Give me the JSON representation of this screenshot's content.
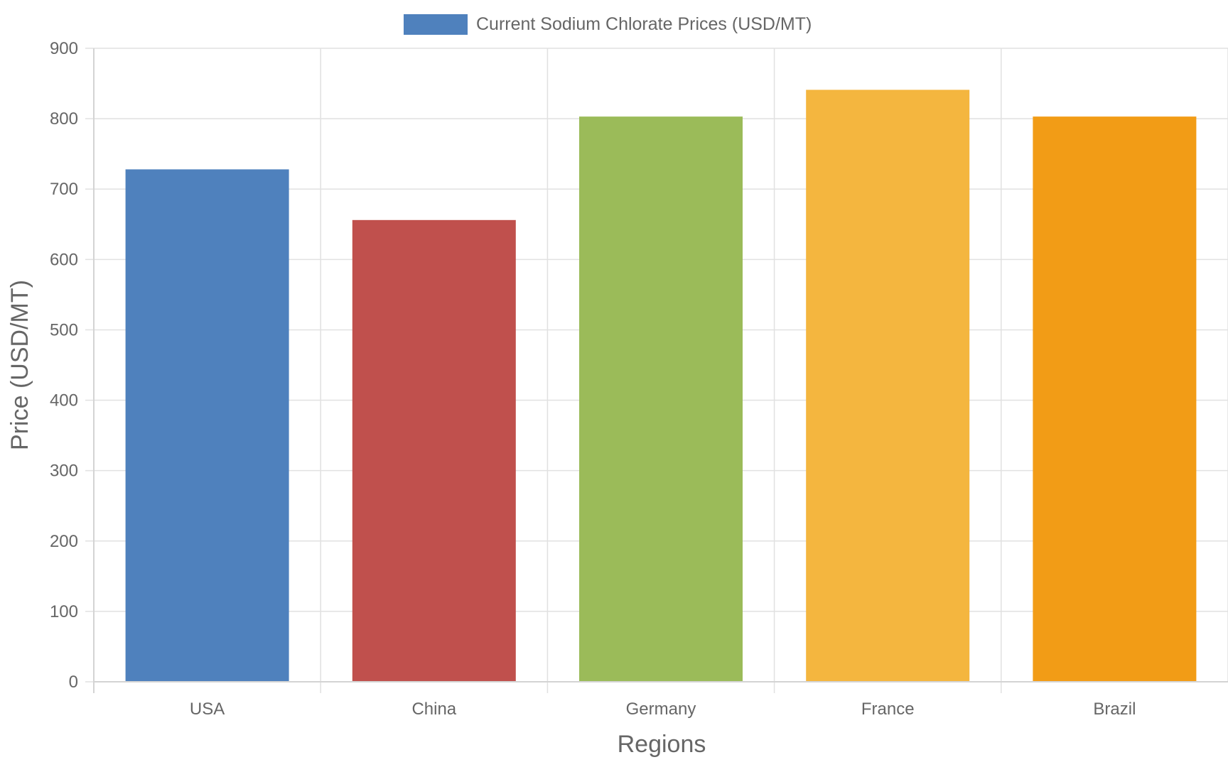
{
  "chart_data": {
    "type": "bar",
    "title": "",
    "categories": [
      "USA",
      "China",
      "Germany",
      "France",
      "Brazil"
    ],
    "series": [
      {
        "name": "Current Sodium Chlorate Prices (USD/MT)",
        "values": [
          727,
          655,
          802,
          840,
          802
        ],
        "colors": [
          "#4f81bd",
          "#c0504d",
          "#9bbb59",
          "#f4b63f",
          "#f29c16"
        ]
      }
    ],
    "xlabel": "Regions",
    "ylabel": "Price (USD/MT)",
    "ylim": [
      0,
      900
    ],
    "yticks": [
      "0",
      "100",
      "200",
      "300",
      "400",
      "500",
      "600",
      "700",
      "800",
      "900"
    ],
    "grid": true,
    "legend_position": "top-center",
    "legend_color": "#4f81bd"
  }
}
